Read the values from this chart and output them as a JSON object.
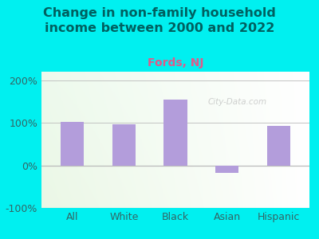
{
  "title": "Change in non-family household\nincome between 2000 and 2022",
  "subtitle": "Fords, NJ",
  "categories": [
    "All",
    "White",
    "Black",
    "Asian",
    "Hispanic"
  ],
  "values": [
    102,
    97,
    155,
    -18,
    93
  ],
  "bar_color": "#b39ddb",
  "title_fontsize": 11.5,
  "subtitle_fontsize": 10,
  "subtitle_color": "#e05a8a",
  "title_color": "#006060",
  "bg_outer_color": "#00f0f0",
  "ylim": [
    -100,
    220
  ],
  "yticks": [
    -100,
    0,
    100,
    200
  ],
  "ytick_labels": [
    "-100%",
    "0%",
    "100%",
    "200%"
  ],
  "watermark": "City-Data.com",
  "tick_color": "#336666",
  "xlabel_fontsize": 9,
  "ylabel_fontsize": 9
}
